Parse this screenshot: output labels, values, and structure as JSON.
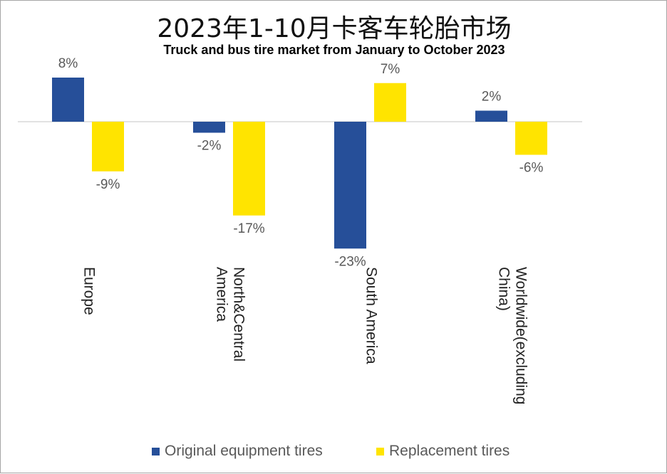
{
  "title": "2023年1-10月卡客车轮胎市场",
  "subtitle": "Truck and bus tire market from January to October 2023",
  "chart_data": {
    "type": "bar",
    "categories": [
      [
        "Europe"
      ],
      [
        "North&Central",
        "America"
      ],
      [
        "South America"
      ],
      [
        "Worldwide(excluding",
        "China)"
      ]
    ],
    "series": [
      {
        "name": "Original equipment tires",
        "color": "#264f99",
        "values": [
          8,
          -2,
          -23,
          2
        ],
        "labels": [
          "8%",
          "-2%",
          "-23%",
          "2%"
        ]
      },
      {
        "name": "Replacement tires",
        "color": "#ffe400",
        "values": [
          -9,
          -17,
          7,
          -6
        ],
        "labels": [
          "-9%",
          "-17%",
          "7%",
          "-6%"
        ]
      }
    ],
    "unit": "%",
    "ylim": [
      -30,
      10
    ],
    "grid": false,
    "legend_position": "bottom"
  }
}
